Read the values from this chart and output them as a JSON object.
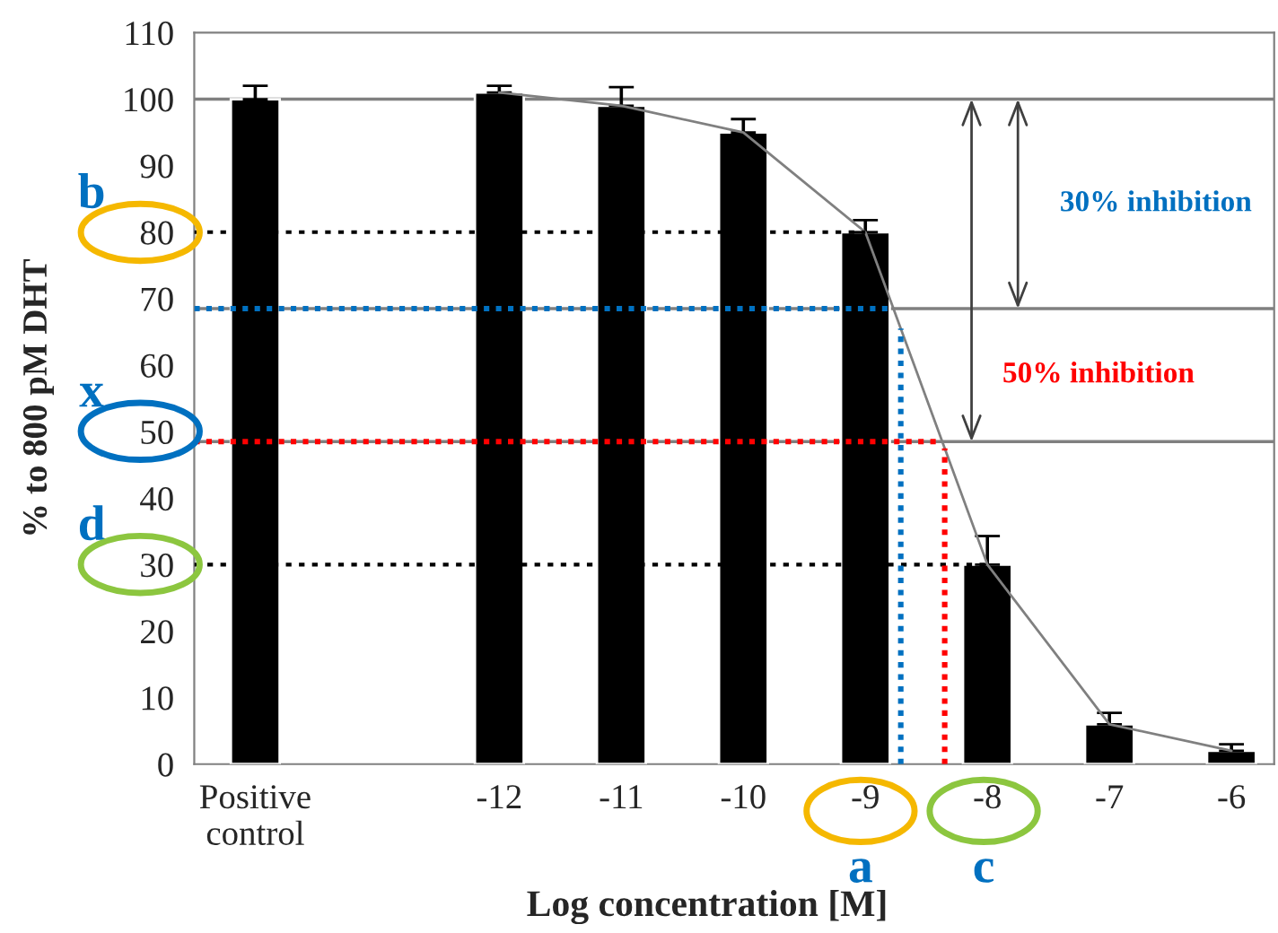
{
  "chart_data": {
    "type": "bar",
    "xlabel": "Log concentration [M]",
    "ylabel": "% to 800 pM DHT",
    "series": [
      {
        "color": "#000000",
        "x": [
          -14,
          -12,
          -11,
          -10,
          -9,
          -8,
          -7,
          -6
        ],
        "values": [
          100,
          101,
          99,
          95,
          80,
          30,
          6,
          2
        ],
        "errors": [
          [
            100,
            102
          ],
          [
            101,
            102
          ],
          [
            99,
            101.8
          ],
          [
            95,
            97
          ],
          [
            80,
            81.8
          ],
          [
            30,
            34.3
          ],
          [
            6,
            7.7
          ],
          [
            2,
            3
          ]
        ]
      },
      {
        "type": "line",
        "color": "#808080",
        "x": [
          -12,
          -11,
          -10,
          -9,
          -8,
          -7,
          -6
        ],
        "values": [
          101,
          99,
          95,
          80,
          30,
          6,
          2
        ]
      }
    ],
    "xlim": [
      -14.5,
      -5.65
    ],
    "xticks": [
      {
        "value": -14,
        "label": "Positive\ncontrol"
      },
      -12,
      -11,
      -10,
      -9,
      -8,
      -7,
      -6
    ],
    "ylim": [
      0,
      110
    ],
    "yticks": [
      0,
      10,
      20,
      30,
      40,
      50,
      60,
      70,
      80,
      90,
      100,
      110
    ],
    "grid": false,
    "legend": false,
    "ref_lines": [
      {
        "axis": "y",
        "value": 100,
        "color": "#808080",
        "line_style": "solid"
      },
      {
        "axis": "y",
        "value": 68.5,
        "color": "#808080",
        "line_style": "solid"
      },
      {
        "axis": "y",
        "value": 48.5,
        "color": "#808080",
        "line_style": "solid"
      },
      {
        "axis": "y",
        "value": 80,
        "color": "#000000",
        "line_style": "dotted"
      },
      {
        "axis": "y",
        "value": 30,
        "color": "#000000",
        "line_style": "dotted"
      },
      {
        "axis": "y",
        "value": 68.5,
        "color": "#0070c0",
        "line_style": "dotted"
      },
      {
        "axis": "y",
        "value": 48.5,
        "color": "#ff0000",
        "line_style": "dotted"
      },
      {
        "axis": "x",
        "value": -8.71,
        "color": "#0070c0",
        "line_style": "dotted"
      },
      {
        "axis": "x",
        "value": -8.35,
        "color": "#ff0000",
        "line_style": "dotted"
      }
    ],
    "annotations": [
      "30% inhibition",
      "50% inhibition",
      "b",
      "x",
      "d",
      "a",
      "c"
    ]
  }
}
